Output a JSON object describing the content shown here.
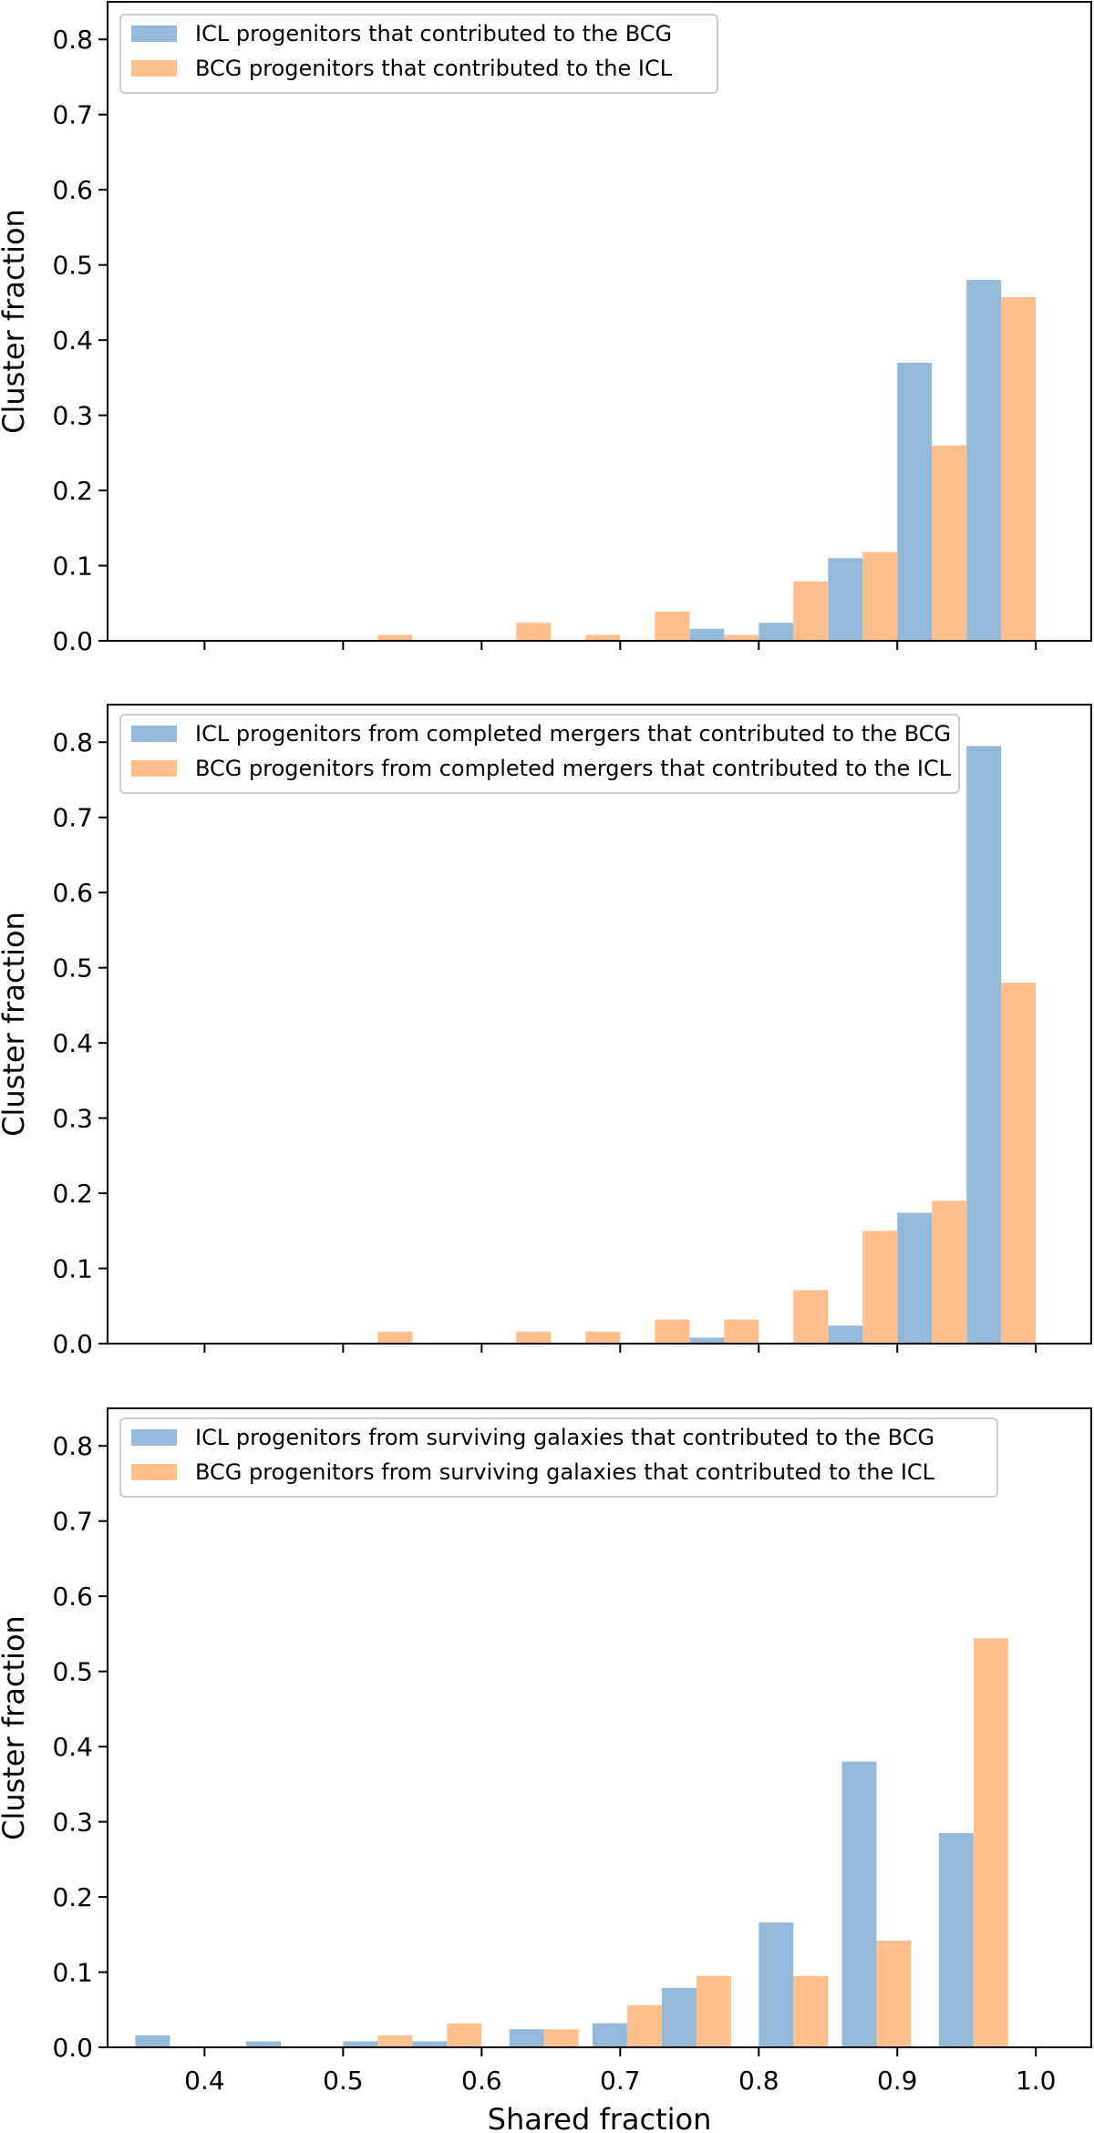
{
  "figure": {
    "xlabel": "Shared fraction",
    "ylabel": "Cluster fraction"
  },
  "colors": {
    "series_a": "#93bbd9",
    "series_b": "#ffc08e",
    "axes": "#000000",
    "legend_border": "#cccccc"
  },
  "chart_data": [
    {
      "type": "bar",
      "xlim": [
        0.33,
        1.04
      ],
      "ylim": [
        0,
        0.85
      ],
      "bin_width": 0.05,
      "bin_starts": [
        0.35,
        0.4,
        0.45,
        0.5,
        0.55,
        0.6,
        0.65,
        0.7,
        0.75,
        0.8,
        0.85,
        0.9,
        0.95
      ],
      "x_ticks": [
        0.4,
        0.5,
        0.6,
        0.7,
        0.8,
        0.9,
        1.0
      ],
      "x_tick_labels": [
        "0.4",
        "0.5",
        "0.6",
        "0.7",
        "0.8",
        "0.9",
        "1.0"
      ],
      "y_ticks": [
        0.0,
        0.1,
        0.2,
        0.3,
        0.4,
        0.5,
        0.6,
        0.7,
        0.8
      ],
      "y_tick_labels": [
        "0.0",
        "0.1",
        "0.2",
        "0.3",
        "0.4",
        "0.5",
        "0.6",
        "0.7",
        "0.8"
      ],
      "legend_position": "top-left",
      "series": [
        {
          "name": "ICL progenitors that contributed to the BCG",
          "values": [
            0,
            0,
            0,
            0,
            0,
            0,
            0,
            0,
            0.016,
            0.024,
            0.11,
            0.37,
            0.48
          ]
        },
        {
          "name": "BCG progenitors that contributed to the ICL",
          "values": [
            0,
            0,
            0,
            0.008,
            0,
            0.024,
            0.008,
            0.039,
            0.008,
            0.079,
            0.118,
            0.26,
            0.457
          ]
        }
      ]
    },
    {
      "type": "bar",
      "xlim": [
        0.33,
        1.04
      ],
      "ylim": [
        0,
        0.85
      ],
      "bin_width": 0.05,
      "bin_starts": [
        0.35,
        0.4,
        0.45,
        0.5,
        0.55,
        0.6,
        0.65,
        0.7,
        0.75,
        0.8,
        0.85,
        0.9,
        0.95
      ],
      "x_ticks": [
        0.4,
        0.5,
        0.6,
        0.7,
        0.8,
        0.9,
        1.0
      ],
      "x_tick_labels": [
        "0.4",
        "0.5",
        "0.6",
        "0.7",
        "0.8",
        "0.9",
        "1.0"
      ],
      "y_ticks": [
        0.0,
        0.1,
        0.2,
        0.3,
        0.4,
        0.5,
        0.6,
        0.7,
        0.8
      ],
      "y_tick_labels": [
        "0.0",
        "0.1",
        "0.2",
        "0.3",
        "0.4",
        "0.5",
        "0.6",
        "0.7",
        "0.8"
      ],
      "legend_position": "top",
      "series": [
        {
          "name": "ICL progenitors from completed mergers that contributed to the BCG",
          "values": [
            0,
            0,
            0,
            0,
            0,
            0,
            0,
            0,
            0.008,
            0,
            0.024,
            0.174,
            0.795
          ]
        },
        {
          "name": "BCG progenitors from completed mergers that contributed to the ICL",
          "values": [
            0,
            0,
            0,
            0.016,
            0,
            0.016,
            0.016,
            0.032,
            0.032,
            0.071,
            0.15,
            0.19,
            0.48
          ]
        }
      ]
    },
    {
      "type": "bar",
      "xlim": [
        0.33,
        1.04
      ],
      "ylim": [
        0,
        0.85
      ],
      "bin_width": 0.05,
      "bin_starts": [
        0.35,
        0.4,
        0.45,
        0.5,
        0.55,
        0.6,
        0.65,
        0.7,
        0.75,
        0.8,
        0.85,
        0.9,
        0.95
      ],
      "x_ticks": [
        0.4,
        0.5,
        0.6,
        0.7,
        0.8,
        0.9,
        1.0
      ],
      "x_tick_labels": [
        "0.4",
        "0.5",
        "0.6",
        "0.7",
        "0.8",
        "0.9",
        "1.0"
      ],
      "y_ticks": [
        0.0,
        0.1,
        0.2,
        0.3,
        0.4,
        0.5,
        0.6,
        0.7,
        0.8
      ],
      "y_tick_labels": [
        "0.0",
        "0.1",
        "0.2",
        "0.3",
        "0.4",
        "0.5",
        "0.6",
        "0.7",
        "0.8"
      ],
      "legend_position": "top-left",
      "xlabel": "Shared fraction",
      "series": [
        {
          "name": "ICL progenitors from surviving galaxies that contributed to the BCG",
          "values": [
            0.016,
            0.008,
            0.008,
            0.008,
            0.024,
            0.032,
            0.079,
            0.166,
            0.38,
            0.285,
            0,
            0,
            0
          ]
        },
        {
          "name": "BCG progenitors from surviving galaxies that contributed to the ICL",
          "values": [
            0,
            0,
            0.016,
            0.032,
            0.024,
            0.056,
            0.095,
            0.095,
            0.142,
            0.544,
            0,
            0,
            0
          ]
        }
      ],
      "bin_starts_override": [
        0.35,
        0.43,
        0.5,
        0.55,
        0.62,
        0.68,
        0.73,
        0.8,
        0.86,
        0.93,
        0,
        0,
        0
      ]
    }
  ]
}
